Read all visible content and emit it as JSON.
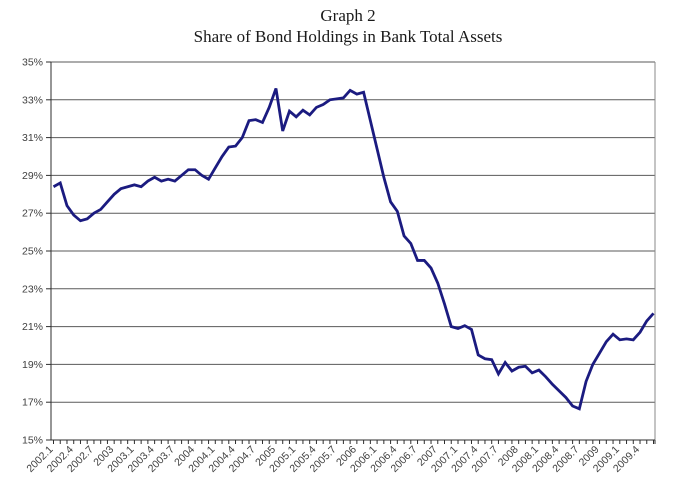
{
  "title": {
    "line1": "Graph 2",
    "line2": "Share of Bond Holdings in Bank Total Assets"
  },
  "chart_data": {
    "type": "line",
    "series_name": "Share of bond holdings in bank total assets (%)",
    "x_start_label": "2002.1",
    "x_frequency": "monthly",
    "x_tick_labels": [
      "2002.1",
      "2002.4",
      "2002.7",
      "2003",
      "2003.1",
      "2003.4",
      "2003.7",
      "2004",
      "2004.1",
      "2004.4",
      "2004.7",
      "2005",
      "2005.1",
      "2005.4",
      "2005.7",
      "2006",
      "2006.1",
      "2006.4",
      "2006.7",
      "2007",
      "2007.1",
      "2007.4",
      "2007.7",
      "2008",
      "2008.1",
      "2008.4",
      "2008.7",
      "2009",
      "2009.1",
      "2009.4"
    ],
    "x_label_every_n_points": 3,
    "values": [
      28.4,
      28.6,
      27.4,
      26.9,
      26.6,
      26.7,
      27.0,
      27.2,
      27.6,
      28.0,
      28.3,
      28.4,
      28.5,
      28.4,
      28.7,
      28.9,
      28.7,
      28.8,
      28.7,
      29.0,
      29.3,
      29.3,
      29.0,
      28.8,
      29.4,
      30.0,
      30.5,
      30.55,
      31.0,
      31.9,
      31.95,
      31.8,
      32.6,
      33.6,
      31.35,
      32.4,
      32.1,
      32.45,
      32.2,
      32.6,
      32.75,
      33.0,
      33.05,
      33.1,
      33.5,
      33.3,
      33.4,
      31.9,
      30.4,
      28.9,
      27.6,
      27.1,
      25.8,
      25.4,
      24.5,
      24.5,
      24.1,
      23.3,
      22.2,
      21.0,
      20.9,
      21.05,
      20.85,
      19.5,
      19.3,
      19.25,
      18.5,
      19.1,
      18.65,
      18.85,
      18.9,
      18.55,
      18.7,
      18.35,
      17.95,
      17.6,
      17.25,
      16.8,
      16.65,
      18.1,
      19.0,
      19.6,
      20.2,
      20.6,
      20.3,
      20.35,
      20.3,
      20.7,
      21.3,
      21.7
    ],
    "ylim": [
      15,
      35
    ],
    "y_tick_step": 2,
    "y_tick_labels": [
      "15%",
      "17%",
      "19%",
      "21%",
      "23%",
      "25%",
      "27%",
      "29%",
      "31%",
      "33%",
      "35%"
    ],
    "grid": "horizontal",
    "legend": "none",
    "line_color": "#1b1b80",
    "grid_color": "#5a5a5a",
    "axis_color": "#2e2e2e",
    "border_color": "#8a8a8a"
  }
}
